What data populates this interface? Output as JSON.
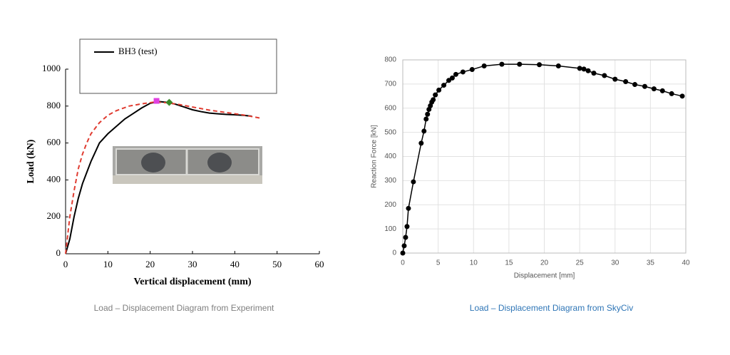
{
  "chart_data": [
    {
      "type": "line",
      "xlabel": "Vertical displacement (mm)",
      "ylabel": "Load (kN)",
      "caption": "Load – Displacement Diagram from Experiment",
      "caption_color": "#7f7f7f",
      "xlim": [
        0,
        60
      ],
      "ylim": [
        0,
        1000
      ],
      "xticks": [
        0,
        10,
        20,
        30,
        40,
        50,
        60
      ],
      "yticks": [
        0,
        200,
        400,
        600,
        800,
        1000
      ],
      "grid": false,
      "legend": "top",
      "series": [
        {
          "name": "BH3 (test)",
          "color": "#000000",
          "style": "solid",
          "x": [
            0,
            1,
            2,
            3,
            4,
            5,
            6,
            7,
            8,
            10,
            12,
            14,
            16,
            18,
            20,
            22,
            24,
            26,
            28,
            30,
            32,
            34,
            36,
            38,
            40,
            42,
            44
          ],
          "values": [
            0,
            80,
            200,
            300,
            380,
            440,
            500,
            550,
            600,
            650,
            690,
            730,
            760,
            790,
            815,
            825,
            820,
            810,
            795,
            780,
            770,
            762,
            758,
            755,
            753,
            750,
            745
          ]
        },
        {
          "color": "#e03c31",
          "style": "dashed",
          "x": [
            0,
            1,
            2,
            3,
            4,
            5,
            6,
            8,
            10,
            12,
            15,
            18,
            21,
            24,
            27,
            30,
            34,
            38,
            42,
            46
          ],
          "values": [
            0,
            200,
            340,
            460,
            540,
            600,
            650,
            710,
            750,
            775,
            800,
            812,
            822,
            818,
            808,
            795,
            778,
            765,
            752,
            735
          ]
        },
        {
          "color": "#e040e0",
          "marker": "square",
          "x": [
            21.5
          ],
          "values": [
            828
          ]
        },
        {
          "color": "#3a8a2a",
          "marker": "diamond",
          "x": [
            24.5
          ],
          "values": [
            820
          ]
        }
      ]
    },
    {
      "type": "line",
      "xlabel": "Displacement [mm]",
      "ylabel": "Reaction Force [kN]",
      "caption": "Load – Displacement Diagram from SkyCiv",
      "caption_color": "#2e75b6",
      "xlim": [
        0,
        40
      ],
      "ylim": [
        0,
        800
      ],
      "xticks": [
        0,
        5,
        10,
        15,
        20,
        25,
        30,
        35,
        40
      ],
      "yticks": [
        0,
        100,
        200,
        300,
        400,
        500,
        600,
        700,
        800
      ],
      "grid": true,
      "series": [
        {
          "color": "#000000",
          "style": "solid",
          "marker": "circle",
          "x": [
            0,
            0.2,
            0.4,
            0.6,
            0.8,
            1.5,
            2.6,
            3.0,
            3.3,
            3.5,
            3.7,
            3.9,
            4.1,
            4.3,
            4.6,
            5.1,
            5.8,
            6.5,
            7,
            7.5,
            8.5,
            9.8,
            11.5,
            14,
            16.5,
            19.3,
            22,
            25,
            25.6,
            26.2,
            27,
            28.5,
            30,
            31.5,
            32.8,
            34.2,
            35.5,
            36.7,
            38,
            39.5
          ],
          "values": [
            0,
            30,
            65,
            110,
            185,
            295,
            455,
            505,
            555,
            575,
            595,
            610,
            625,
            635,
            655,
            675,
            695,
            715,
            725,
            740,
            750,
            760,
            775,
            782,
            782,
            780,
            775,
            765,
            762,
            755,
            745,
            735,
            720,
            710,
            698,
            690,
            680,
            672,
            660,
            650
          ]
        }
      ]
    }
  ]
}
